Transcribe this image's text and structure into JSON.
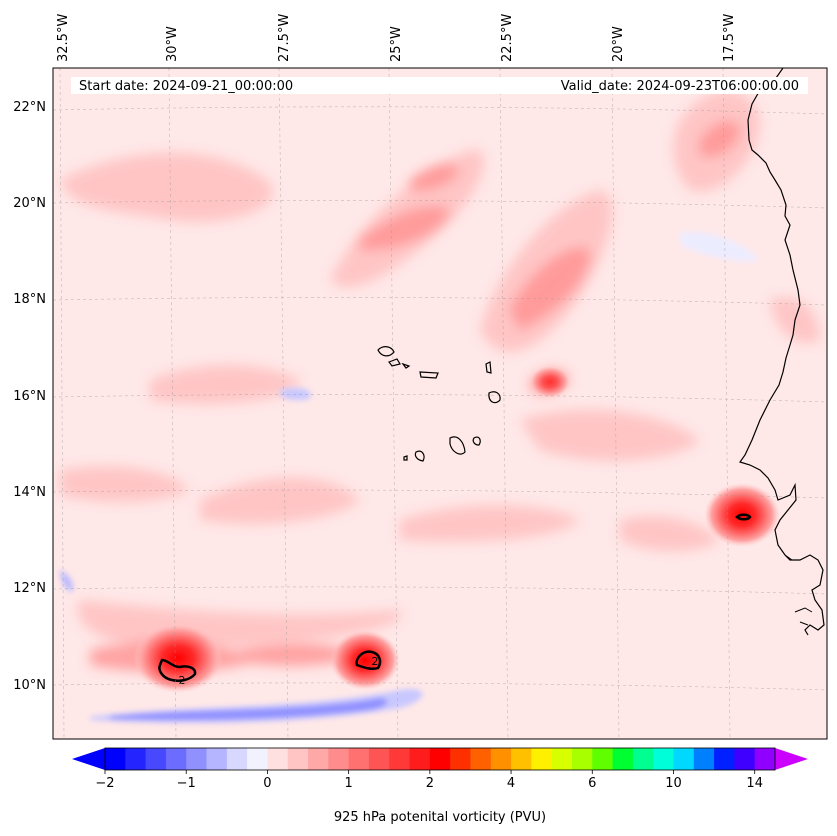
{
  "header": {
    "start_date": "Start date: 2024-09-21_00:00:00",
    "valid_date": "Valid_date: 2024-09-23T06:00:00.00"
  },
  "map": {
    "projection": "lambert-conformal",
    "lon_range": [
      -33.0,
      -15.0
    ],
    "lat_range": [
      8.9,
      22.8
    ],
    "lon_ticks": [
      "32.5°W",
      "30°W",
      "27.5°W",
      "25°W",
      "22.5°W",
      "20°W",
      "17.5°W"
    ],
    "lat_ticks": [
      "22°N",
      "20°N",
      "18°N",
      "16°N",
      "14°N",
      "12°N",
      "10°N"
    ],
    "background_color": "#ffe8e8",
    "coastline_color": "#000000",
    "gridline_style": "dashed",
    "features": [
      {
        "name": "vorticity-maximum-west",
        "lon": -29.7,
        "lat": 10.5,
        "value": 2
      },
      {
        "name": "vorticity-maximum-central",
        "lon": -25.2,
        "lat": 10.5,
        "value": 2
      },
      {
        "name": "vorticity-maximum-coast",
        "lon": -16.7,
        "lat": 13.5,
        "value": 2
      }
    ],
    "islands": "Cape Verde",
    "contour_labels": [
      "2",
      "2"
    ]
  },
  "colorbar": {
    "label": "925 hPa potenital vorticity (PVU)",
    "extend": "both",
    "levels": [
      -2,
      -1.75,
      -1.5,
      -1.25,
      -1,
      -0.75,
      -0.5,
      -0.25,
      0,
      0.25,
      0.5,
      0.75,
      1,
      1.25,
      1.5,
      1.75,
      2,
      2.5,
      3,
      3.5,
      4,
      4.5,
      5,
      5.5,
      6,
      7,
      8,
      9,
      10,
      11,
      12,
      13,
      14
    ],
    "tick_values": [
      -2,
      -1,
      0,
      1,
      2,
      4,
      6,
      10,
      14
    ],
    "tick_labels": [
      "−2",
      "−1",
      "0",
      "1",
      "2",
      "4",
      "6",
      "10",
      "14"
    ],
    "colors": [
      "#0000ff",
      "#2424ff",
      "#4848ff",
      "#6c6cff",
      "#9090ff",
      "#b4b4ff",
      "#d8d8ff",
      "#f2f2ff",
      "#ffe0e0",
      "#ffc4c4",
      "#ffa8a8",
      "#ff8c8c",
      "#ff7070",
      "#ff5454",
      "#ff3838",
      "#ff1c1c",
      "#ff0000",
      "#ff3000",
      "#ff6000",
      "#ff9000",
      "#ffc000",
      "#fff000",
      "#d8ff00",
      "#a8ff00",
      "#60ff00",
      "#00ff30",
      "#00ff90",
      "#00ffd8",
      "#00d8ff",
      "#0080ff",
      "#0020ff",
      "#4000ff",
      "#9000ff"
    ],
    "under_color": "#0000ff",
    "over_color": "#cc00ff"
  }
}
